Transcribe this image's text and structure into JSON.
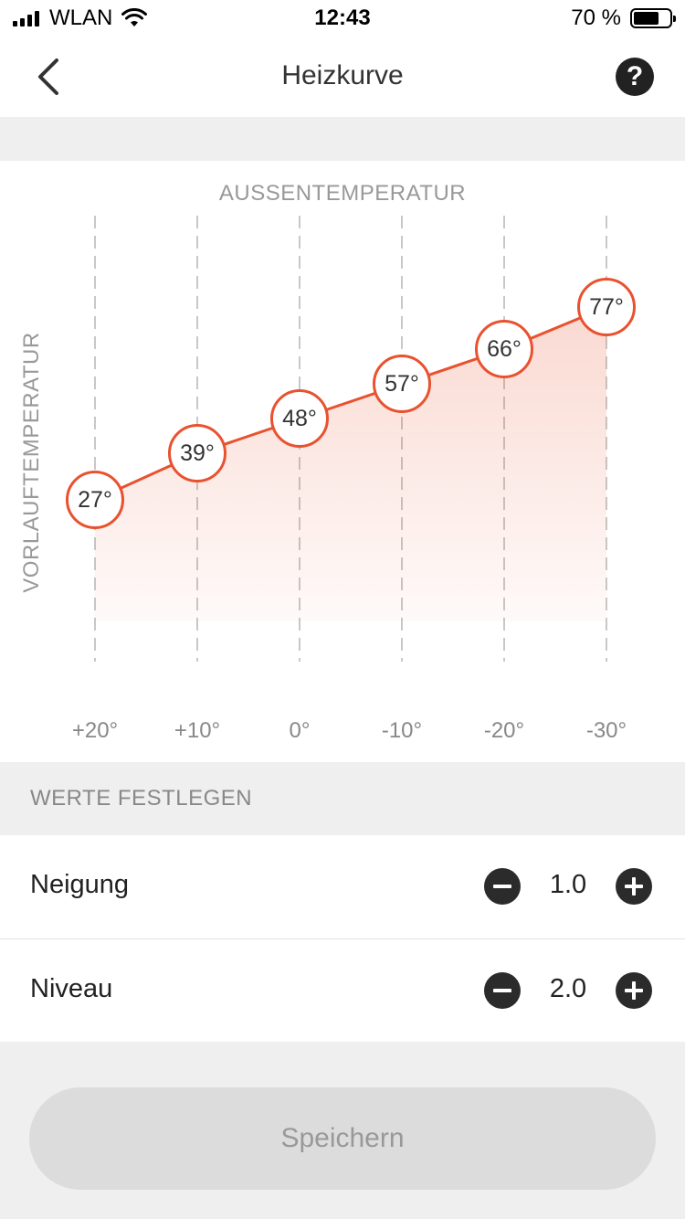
{
  "status_bar": {
    "carrier": "WLAN",
    "time": "12:43",
    "battery_percent": "70 %",
    "battery_level": 0.7
  },
  "nav": {
    "title": "Heizkurve",
    "help_label": "?"
  },
  "chart_data": {
    "type": "line",
    "xlabel": "AUSSENTEMPERATUR",
    "ylabel": "VORLAUFTEMPERATUR",
    "categories": [
      "+20°",
      "+10°",
      "0°",
      "-10°",
      "-20°",
      "-30°"
    ],
    "x": [
      20,
      10,
      0,
      -10,
      -20,
      -30
    ],
    "values": [
      27,
      39,
      48,
      57,
      66,
      77
    ],
    "point_labels": [
      "27°",
      "39°",
      "48°",
      "57°",
      "66°",
      "77°"
    ],
    "grid": "vertical-dashed",
    "line_color": "#e8522f",
    "fill": "gradient"
  },
  "section": {
    "title": "WERTE FESTLEGEN"
  },
  "settings": {
    "neigung": {
      "label": "Neigung",
      "value": "1.0"
    },
    "niveau": {
      "label": "Niveau",
      "value": "2.0"
    }
  },
  "save_button": {
    "label": "Speichern"
  },
  "colors": {
    "accent": "#e8522f",
    "background": "#efefef",
    "button_dark": "#2b2b2b",
    "button_disabled": "#dcdcdc"
  }
}
